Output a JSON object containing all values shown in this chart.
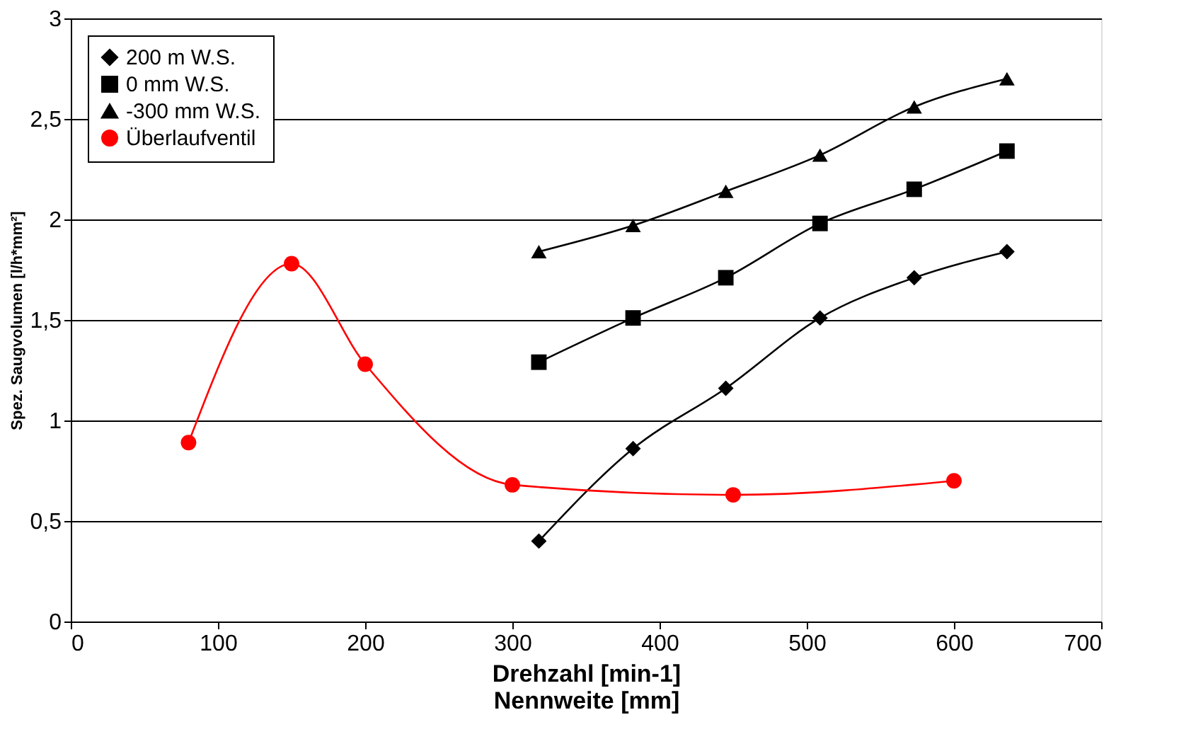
{
  "chart_data": {
    "type": "line",
    "xlabel": "Drehzahl [min-1]\nNennweite [mm]",
    "ylabel": "Spez. Saugvolumen [l/h*mm²]",
    "xlim": [
      0,
      700
    ],
    "xticks": [
      0,
      100,
      200,
      300,
      400,
      500,
      600,
      700
    ],
    "ylim": [
      0,
      3
    ],
    "yticks": [
      0,
      {
        "value": 0.5,
        "label": "0,5"
      },
      1,
      {
        "value": 1.5,
        "label": "1,5"
      },
      2,
      {
        "value": 2.5,
        "label": "2,5"
      },
      3
    ],
    "grid": "y",
    "legend": "top left",
    "series": [
      {
        "name": "200 m W.S.",
        "color": "#000000",
        "marker": "diamond",
        "x": [
          318,
          382,
          445,
          509,
          573,
          636
        ],
        "values": [
          0.4,
          0.86,
          1.16,
          1.51,
          1.71,
          1.84
        ]
      },
      {
        "name": "0 mm W.S.",
        "color": "#000000",
        "marker": "square",
        "x": [
          318,
          382,
          445,
          509,
          573,
          636
        ],
        "values": [
          1.29,
          1.51,
          1.71,
          1.98,
          2.15,
          2.34
        ]
      },
      {
        "name": "-300 mm W.S.",
        "color": "#000000",
        "marker": "triangle",
        "x": [
          318,
          382,
          445,
          509,
          573,
          636
        ],
        "values": [
          1.84,
          1.97,
          2.14,
          2.32,
          2.56,
          2.7
        ]
      },
      {
        "name": "Überlaufventil",
        "color": "#ff0000",
        "marker": "circle",
        "x": [
          80,
          150,
          200,
          300,
          450,
          600
        ],
        "values": [
          0.89,
          1.78,
          1.28,
          0.68,
          0.63,
          0.7
        ]
      }
    ]
  }
}
